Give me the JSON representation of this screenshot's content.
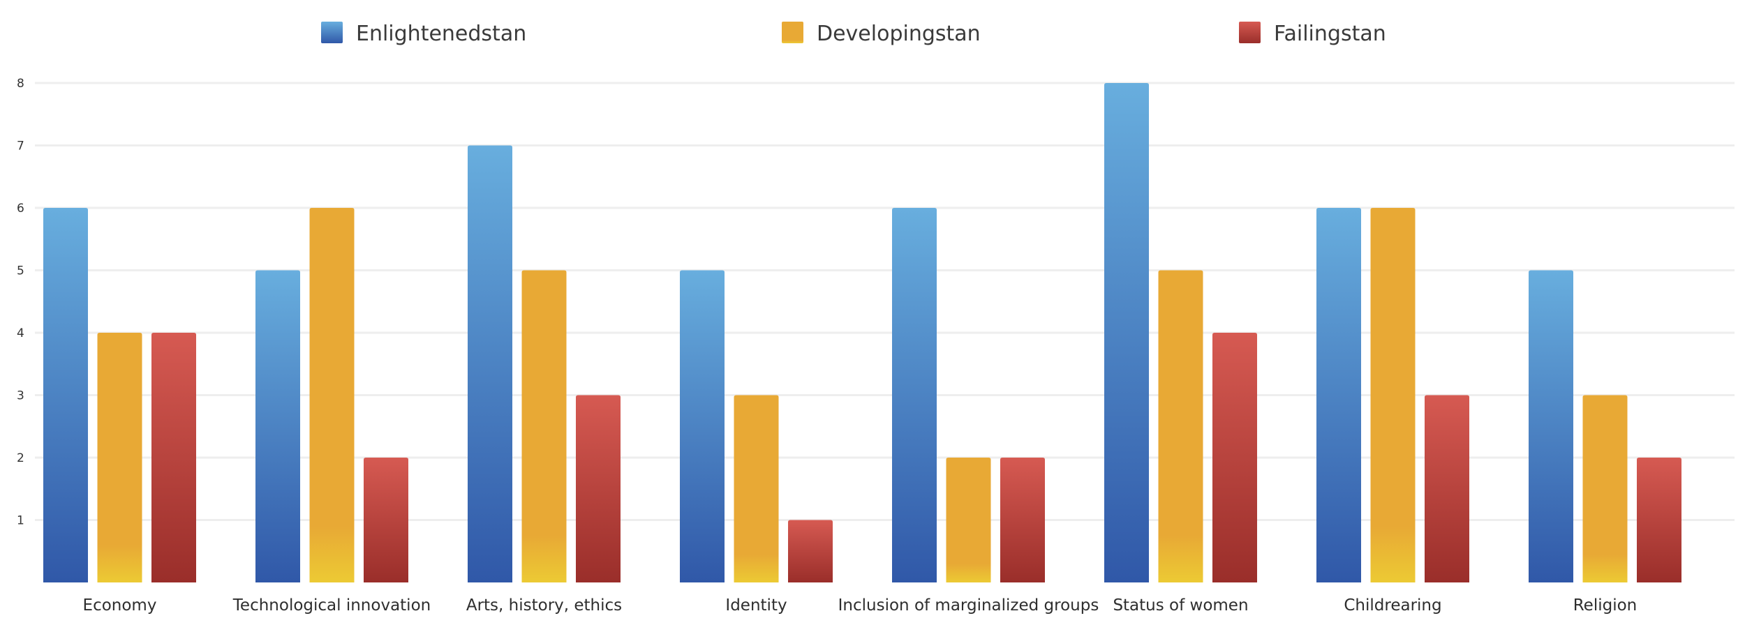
{
  "chart_data": {
    "type": "bar",
    "title": "",
    "xlabel": "",
    "ylabel": "",
    "ylim": [
      0,
      8
    ],
    "yticks": [
      1,
      2,
      3,
      4,
      5,
      6,
      7,
      8
    ],
    "grid": true,
    "legend_position": "top",
    "categories": [
      "Economy",
      "Technological innovation",
      "Arts, history, ethics",
      "Identity",
      "Inclusion of marginalized groups",
      "Status of women",
      "Childrearing",
      "Religion"
    ],
    "series": [
      {
        "name": "Enlightenedstan",
        "values": [
          6,
          5,
          7,
          5,
          6,
          8,
          6,
          5
        ],
        "color_top": "#68aede",
        "color_bottom": "#3058a8",
        "swatch": "#4a7ccc"
      },
      {
        "name": "Developingstan",
        "values": [
          4,
          6,
          5,
          3,
          2,
          5,
          6,
          3
        ],
        "color_top": "#e8a935",
        "color_bottom": "#ecca34",
        "swatch": "#e8b132"
      },
      {
        "name": "Failingstan",
        "values": [
          4,
          2,
          3,
          1,
          2,
          4,
          3,
          2
        ],
        "color_top": "#d65a52",
        "color_bottom": "#9a2e2a",
        "swatch": "#c9433d"
      }
    ]
  }
}
